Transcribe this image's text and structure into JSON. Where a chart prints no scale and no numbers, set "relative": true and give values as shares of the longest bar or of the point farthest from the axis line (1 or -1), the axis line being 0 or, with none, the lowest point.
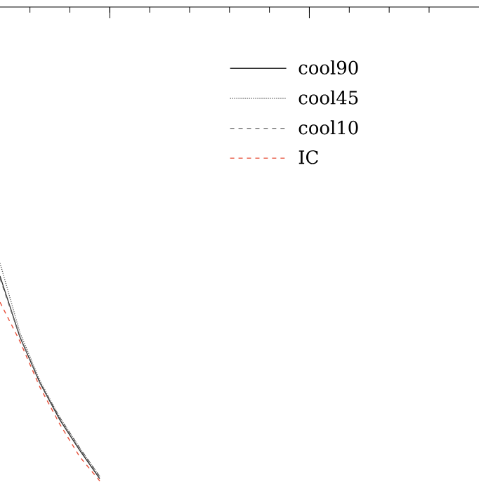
{
  "chart_data": {
    "type": "line",
    "relative": true,
    "legend": "top right",
    "categories": [
      null,
      null,
      null,
      null,
      null,
      null,
      null,
      null,
      null,
      null,
      null,
      null,
      null,
      null,
      null,
      null,
      null,
      null,
      null,
      null,
      null,
      null,
      null,
      null,
      null
    ],
    "series": [
      {
        "name": "cool90",
        "color": "#333333",
        "line_style": "solid",
        "values": [
          0.94,
          0.66,
          0.45,
          0.28,
          0.14,
          0.01,
          null,
          null,
          null,
          null,
          null,
          null,
          null,
          null,
          null,
          null,
          null,
          null,
          null,
          null,
          null,
          null,
          null,
          null,
          null
        ]
      },
      {
        "name": "cool45",
        "color": "#555555",
        "line_style": "dotted",
        "values": [
          1.0,
          0.68,
          0.46,
          0.29,
          0.15,
          0.02,
          null,
          null,
          null,
          null,
          null,
          null,
          null,
          null,
          null,
          null,
          null,
          null,
          null,
          null,
          null,
          null,
          null,
          null,
          null
        ]
      },
      {
        "name": "cool10",
        "color": "#666666",
        "line_style": "dashed",
        "values": [
          0.93,
          0.66,
          0.45,
          0.29,
          0.15,
          0.02,
          null,
          null,
          null,
          null,
          null,
          null,
          null,
          null,
          null,
          null,
          null,
          null,
          null,
          null,
          null,
          null,
          null,
          null,
          null
        ]
      },
      {
        "name": "IC",
        "color": "#e8503a",
        "line_style": "dashed",
        "values": [
          0.82,
          0.64,
          0.43,
          0.26,
          0.11,
          0.0,
          null,
          null,
          null,
          null,
          null,
          null,
          null,
          null,
          null,
          null,
          null,
          null,
          null,
          null,
          null,
          null,
          null,
          null,
          null
        ]
      }
    ]
  }
}
